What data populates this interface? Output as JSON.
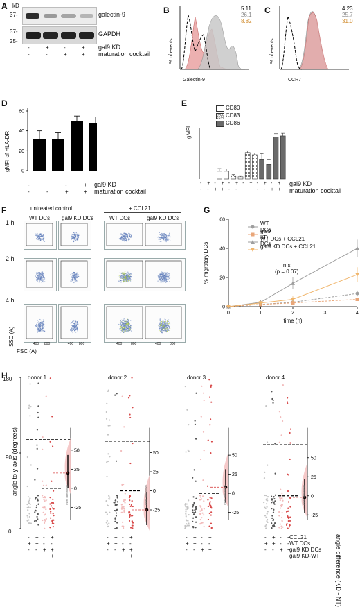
{
  "panelA": {
    "letter": "A",
    "unit": "kD",
    "markers": [
      "37-",
      "37-",
      "25-"
    ],
    "labels": [
      "galectin-9",
      "GAPDH"
    ],
    "rows": [
      {
        "label": "gal9 KD",
        "signs": [
          "-",
          "+",
          "-",
          "+"
        ]
      },
      {
        "label": "maturation cocktail",
        "signs": [
          "-",
          "-",
          "+",
          "+"
        ]
      }
    ]
  },
  "panelB": {
    "letter": "B",
    "values": [
      "5.11",
      "26.1",
      "8.82"
    ],
    "ylabel": "% of events",
    "xlabel": "Galectin-9"
  },
  "panelC": {
    "letter": "C",
    "values": [
      "4.23",
      "25.7",
      "31.0"
    ],
    "ylabel": "% of events",
    "xlabel": "CCR7"
  },
  "panelD": {
    "letter": "D",
    "ylabel": "gMFI of HLA-DR",
    "yticks": [
      "0",
      "20",
      "40",
      "60"
    ],
    "rows": [
      {
        "label": "gal9 KD",
        "signs": [
          "-",
          "+",
          "-",
          "+"
        ]
      },
      {
        "label": "maturation cocktail",
        "signs": [
          "-",
          "-",
          "+",
          "+"
        ]
      }
    ]
  },
  "panelE": {
    "letter": "E",
    "ylabel": "gMFI",
    "legend": [
      "CD80",
      "CD83",
      "CD86"
    ],
    "rows": [
      {
        "label": "gal9 KD",
        "signs": [
          "-",
          "+",
          "-",
          "+",
          "-",
          "+",
          "-",
          "+",
          "-",
          "+",
          "-",
          "+"
        ]
      },
      {
        "label": "maturation cocktail",
        "signs": [
          "-",
          "-",
          "+",
          "+",
          "-",
          "-",
          "+",
          "+",
          "-",
          "-",
          "+",
          "+"
        ]
      }
    ]
  },
  "panelF": {
    "letter": "F",
    "group_labels": [
      "untreated control",
      "+ CCL21"
    ],
    "col_labels": [
      "WT DCs",
      "gal9 KD DCs",
      "WT DCs",
      "gal9 KD DCs"
    ],
    "row_labels": [
      "1 h",
      "2 h",
      "4 h"
    ],
    "ylabel": "SSC (A)",
    "xlabel": "FSC (A)",
    "ticks": [
      "400",
      "800"
    ]
  },
  "panelG": {
    "letter": "G",
    "annotation_line1": "n.s",
    "annotation_line2": "(p = 0.07)",
    "legend": [
      "WT DCs",
      "gal9 KD DCs",
      "WT DCs + CCL21",
      "gal9 KD DCs + CCL21"
    ]
  },
  "panelH": {
    "letter": "H",
    "ylabel": "angle to y-axis (degrees)",
    "right_label": "angle difference (KD - NT)",
    "inset_note": "more directional",
    "donors": [
      "donor 1",
      "donor 2",
      "donor 3",
      "donor 4"
    ],
    "yticks": [
      "0",
      "90",
      "180"
    ],
    "rows": [
      {
        "label": "CCL21",
        "signs": [
          "-",
          "+",
          "-",
          "+",
          "-",
          "+",
          "-",
          "+",
          "-",
          "+",
          "-",
          "+",
          "-",
          "+",
          "-",
          "+"
        ]
      },
      {
        "label": "WT DCs",
        "signs": [
          "+",
          "+",
          "-",
          "-",
          "+",
          "+",
          "-",
          "-",
          "+",
          "+",
          "-",
          "-",
          "+",
          "+",
          "-",
          "-"
        ]
      },
      {
        "label": "gal9 KD DCs",
        "signs": [
          "-",
          "-",
          "+",
          "+",
          "-",
          "-",
          "+",
          "+",
          "-",
          "-",
          "+",
          "+",
          "-",
          "-",
          "+",
          "+"
        ]
      },
      {
        "label": "gal9 KD-WT",
        "signs": [
          "",
          "",
          "",
          "+",
          "",
          "",
          "",
          "+",
          "",
          "",
          "",
          "+",
          "",
          "",
          "",
          "+"
        ]
      }
    ]
  },
  "chart_data": [
    {
      "type": "line",
      "panel": "B",
      "xlabel": "Galectin-9",
      "ylabel": "% of events",
      "series": [
        {
          "name": "",
          "color": "#000000",
          "style": "dashed",
          "value": 5.11
        },
        {
          "name": "",
          "color": "#9e9e9e",
          "style": "filled-grey",
          "value": 26.1
        },
        {
          "name": "",
          "color": "#e9a3a3",
          "style": "filled-red",
          "value": 8.82
        }
      ]
    },
    {
      "type": "line",
      "panel": "C",
      "xlabel": "CCR7",
      "ylabel": "% of events",
      "series": [
        {
          "name": "",
          "color": "#000000",
          "style": "dashed",
          "value": 4.23
        },
        {
          "name": "",
          "color": "#9e9e9e",
          "style": "filled-grey",
          "value": 25.7
        },
        {
          "name": "",
          "color": "#e9a3a3",
          "style": "filled-red",
          "value": 31.0
        }
      ]
    },
    {
      "type": "bar",
      "panel": "D",
      "ylabel": "gMFI of HLA-DR",
      "ylim": [
        0,
        60
      ],
      "values": [
        32,
        32,
        50,
        48
      ],
      "errors": [
        8,
        6,
        5,
        6
      ]
    },
    {
      "type": "bar",
      "panel": "E",
      "ylabel": "gMFI",
      "ylim": [
        0,
        22
      ],
      "series": [
        {
          "name": "CD80",
          "values": [
            0,
            0,
            3.5,
            3.5
          ],
          "errors": [
            0,
            0,
            1.2,
            1.0
          ]
        },
        {
          "name": "CD83",
          "values": [
            1.5,
            1.0,
            12,
            11
          ],
          "errors": [
            0.5,
            0.5,
            0.8,
            0.8
          ]
        },
        {
          "name": "CD86",
          "values": [
            9,
            6.5,
            19,
            19.5
          ],
          "errors": [
            2.5,
            2.5,
            1.5,
            1.2
          ]
        }
      ]
    },
    {
      "type": "line",
      "panel": "G",
      "xlabel": "time (h)",
      "ylabel": "% migratory DCs",
      "xlim": [
        0,
        4
      ],
      "ylim": [
        0,
        60
      ],
      "xticks": [
        0,
        1,
        2,
        3,
        4
      ],
      "yticks": [
        0,
        20,
        40,
        60
      ],
      "x": [
        0,
        1,
        2,
        4
      ],
      "series": [
        {
          "name": "WT DCs",
          "color": "#9e9e9e",
          "values": [
            0,
            1.5,
            3,
            9
          ],
          "dashed": true
        },
        {
          "name": "gal9 KD DCs",
          "color": "#e9a679",
          "values": [
            0,
            1.5,
            2.5,
            5
          ],
          "dashed": true
        },
        {
          "name": "WT DCs + CCL21",
          "color": "#9e9e9e",
          "values": [
            0,
            3,
            16,
            40
          ],
          "dashed": false
        },
        {
          "name": "gal9 KD DCs + CCL21",
          "color": "#f0b56b",
          "values": [
            0,
            2.5,
            5,
            22
          ],
          "dashed": false
        }
      ]
    },
    {
      "type": "scatter",
      "panel": "H",
      "ylabel": "angle to y-axis (degrees)",
      "ylim": [
        0,
        180
      ],
      "right_axis_label": "angle difference (KD - NT)",
      "right_ticks": [
        -25,
        0,
        25,
        50
      ],
      "donors": [
        {
          "name": "donor 1",
          "mean_difference": 20
        },
        {
          "name": "donor 2",
          "mean_difference": -25
        },
        {
          "name": "donor 3",
          "mean_difference": 8
        },
        {
          "name": "donor 4",
          "mean_difference": -2
        }
      ]
    }
  ]
}
